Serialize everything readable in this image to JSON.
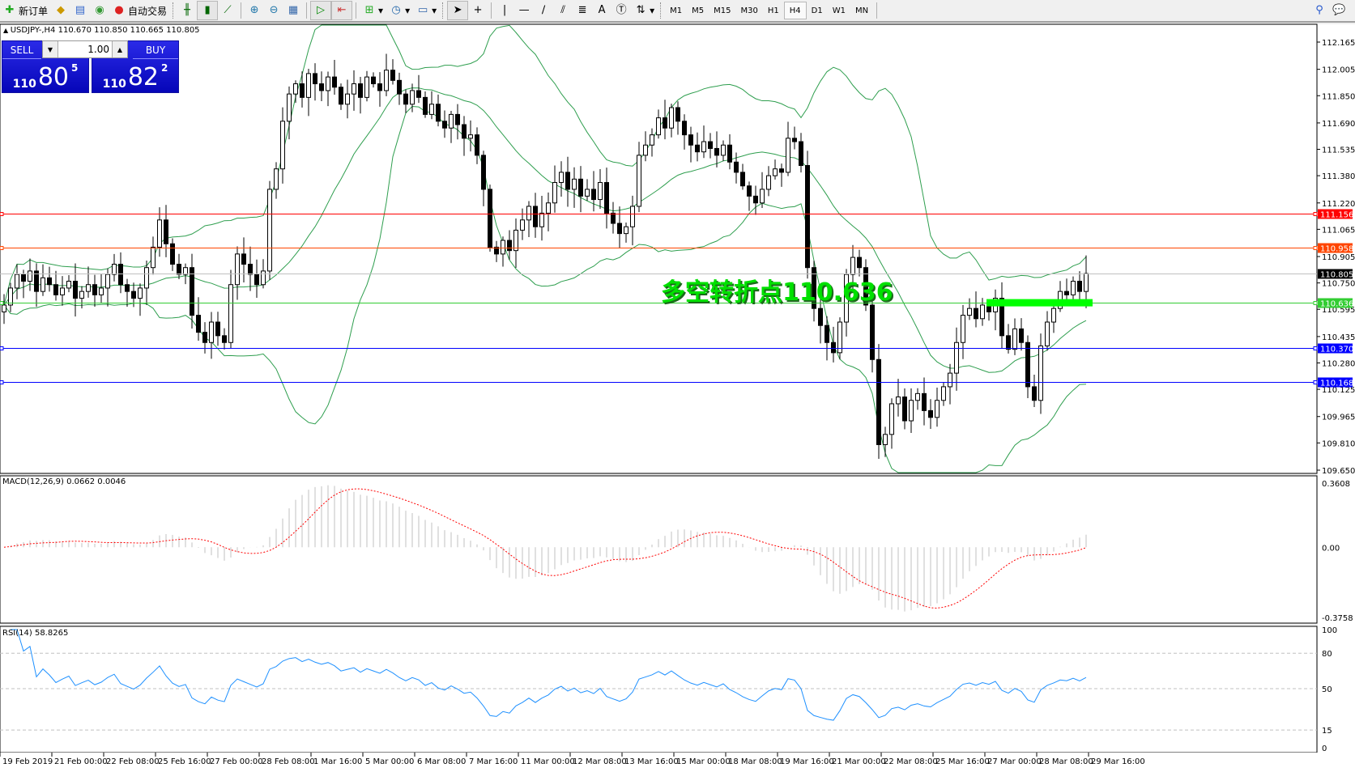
{
  "toolbar": {
    "new_order": "新订单",
    "auto_trading": "自动交易",
    "icons": [
      "new-order-icon",
      "market-watch-icon",
      "navigator-icon",
      "signals-icon",
      "auto-trading-icon",
      "bar-chart-icon",
      "candlestick-icon",
      "line-chart-icon",
      "zoom-in-icon",
      "zoom-out-icon",
      "tile-windows-icon",
      "autoscroll-icon",
      "chart-shift-icon",
      "indicators-icon",
      "periods-icon",
      "templates-icon",
      "cursor-icon",
      "crosshair-icon",
      "vertical-line-icon",
      "horizontal-line-icon",
      "trendline-icon",
      "equidistant-channel-icon",
      "fibonacci-icon",
      "text-icon",
      "text-label-icon",
      "arrows-icon",
      "search-icon",
      "chat-icon"
    ],
    "timeframes": [
      "M1",
      "M5",
      "M15",
      "M30",
      "H1",
      "H4",
      "D1",
      "W1",
      "MN"
    ],
    "active_timeframe": "H4"
  },
  "symbol_info": "USDJPY-,H4  110.670 110.850 110.665 110.805",
  "trade_panel": {
    "sell_label": "SELL",
    "buy_label": "BUY",
    "lot": "1.00",
    "sell_big": "110",
    "sell_main": "80",
    "sell_pip": "5",
    "buy_big": "110",
    "buy_main": "82",
    "buy_pip": "2"
  },
  "annotation": "多空转折点110.636",
  "chart_data": [
    {
      "type": "candlestick",
      "symbol": "USDJPY-",
      "timeframe": "H4",
      "ylim": [
        109.65,
        112.165
      ],
      "y_ticks": [
        "112.165",
        "112.005",
        "111.850",
        "111.690",
        "111.535",
        "111.380",
        "111.220",
        "111.065",
        "110.905",
        "110.750",
        "110.595",
        "110.435",
        "110.280",
        "110.125",
        "109.965",
        "109.810",
        "109.650"
      ],
      "x_ticks": [
        "19 Feb 2019",
        "21 Feb 00:00",
        "22 Feb 08:00",
        "25 Feb 16:00",
        "27 Feb 00:00",
        "28 Feb 08:00",
        "1 Mar 16:00",
        "5 Mar 00:00",
        "6 Mar 08:00",
        "7 Mar 16:00",
        "11 Mar 00:00",
        "12 Mar 08:00",
        "13 Mar 16:00",
        "15 Mar 00:00",
        "18 Mar 08:00",
        "19 Mar 16:00",
        "21 Mar 00:00",
        "22 Mar 08:00",
        "25 Mar 16:00",
        "27 Mar 00:00",
        "28 Mar 08:00",
        "29 Mar 16:00"
      ],
      "close": [
        110.62,
        110.72,
        110.8,
        110.76,
        110.82,
        110.7,
        110.78,
        110.74,
        110.68,
        110.72,
        110.76,
        110.66,
        110.7,
        110.74,
        110.68,
        110.72,
        110.8,
        110.86,
        110.74,
        110.7,
        110.66,
        110.72,
        110.84,
        110.96,
        111.12,
        110.98,
        110.86,
        110.8,
        110.84,
        110.56,
        110.46,
        110.4,
        110.52,
        110.44,
        110.4,
        110.74,
        110.92,
        110.86,
        110.8,
        110.74,
        110.82,
        111.3,
        111.42,
        111.7,
        111.86,
        111.92,
        111.84,
        111.98,
        111.92,
        111.88,
        111.96,
        111.9,
        111.8,
        111.86,
        111.92,
        111.84,
        111.96,
        111.92,
        111.88,
        112.0,
        111.94,
        111.86,
        111.8,
        111.88,
        111.84,
        111.74,
        111.8,
        111.7,
        111.66,
        111.74,
        111.68,
        111.6,
        111.62,
        111.5,
        111.3,
        110.96,
        110.92,
        111.0,
        110.94,
        111.06,
        111.12,
        111.2,
        111.08,
        111.16,
        111.22,
        111.34,
        111.4,
        111.3,
        111.36,
        111.26,
        111.3,
        111.24,
        111.34,
        111.16,
        111.1,
        111.04,
        111.08,
        111.2,
        111.5,
        111.56,
        111.62,
        111.72,
        111.66,
        111.78,
        111.7,
        111.62,
        111.56,
        111.52,
        111.58,
        111.54,
        111.5,
        111.56,
        111.46,
        111.4,
        111.32,
        111.26,
        111.22,
        111.3,
        111.38,
        111.42,
        111.4,
        111.6,
        111.58,
        111.44,
        110.84,
        110.6,
        110.5,
        110.4,
        110.34,
        110.52,
        110.8,
        110.9,
        110.84,
        110.62,
        110.3,
        109.8,
        109.86,
        110.04,
        110.08,
        109.94,
        110.06,
        110.1,
        110.0,
        109.96,
        110.06,
        110.14,
        110.22,
        110.4,
        110.56,
        110.6,
        110.54,
        110.62,
        110.58,
        110.66,
        110.44,
        110.36,
        110.48,
        110.4,
        110.14,
        110.06,
        110.38,
        110.52,
        110.6,
        110.7,
        110.68,
        110.76,
        110.7,
        110.805
      ],
      "indicator": "Bollinger Bands",
      "indicator_color": "#2e9e4e",
      "hlines": [
        {
          "value": "111.156",
          "color": "#ff0000"
        },
        {
          "value": "110.958",
          "color": "#ff4500"
        },
        {
          "value": "110.805",
          "color": "#000000",
          "line_color": "#c0c0c0"
        },
        {
          "value": "110.636",
          "color": "#32cd32"
        },
        {
          "value": "110.370",
          "color": "#0000ff"
        },
        {
          "value": "110.168",
          "color": "#0000ff"
        }
      ],
      "zone": {
        "value": 110.636,
        "color": "#00ff00"
      }
    },
    {
      "type": "bar",
      "name": "MACD(12,26,9) 0.0662 0.0046",
      "ylim": [
        -0.3758,
        0.3608
      ],
      "y_ticks": [
        "0.3608",
        "0.00",
        "-0.3758"
      ],
      "histogram_color": "#c0c0c0",
      "signal_color": "#ff0000"
    },
    {
      "type": "line",
      "name": "RSI(14) 58.8265",
      "ylim": [
        0,
        100
      ],
      "y_ticks": [
        "100",
        "80",
        "50",
        "15",
        "0"
      ],
      "levels": [
        80,
        50,
        15
      ],
      "color": "#1e90ff"
    }
  ]
}
